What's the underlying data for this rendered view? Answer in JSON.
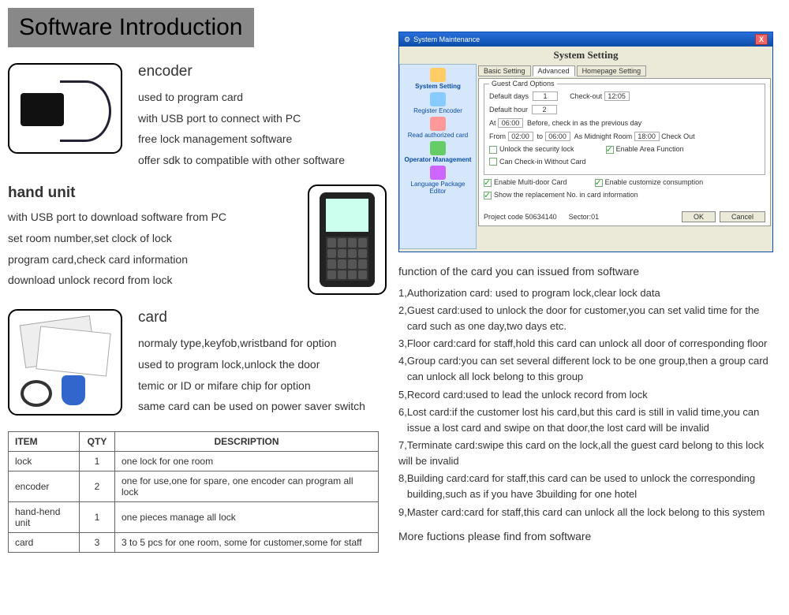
{
  "title": "Software Introduction",
  "encoder": {
    "heading": "encoder",
    "lines": [
      "used to program card",
      "with USB port to connect with PC",
      "free lock management software",
      "offer sdk to compatible with other software"
    ]
  },
  "hand": {
    "heading": "hand unit",
    "lines": [
      "with USB port to download software from PC",
      "set room number,set clock of lock",
      "program card,check card information",
      "download unlock record from lock"
    ]
  },
  "card": {
    "heading": "card",
    "lines": [
      "normaly type,keyfob,wristband for option",
      "used to program lock,unlock the door",
      "temic or ID or mifare chip for option",
      "same card can be used on power saver switch"
    ]
  },
  "table": {
    "headers": [
      "ITEM",
      "QTY",
      "DESCRIPTION"
    ],
    "rows": [
      [
        "lock",
        "1",
        "one lock for one room"
      ],
      [
        "encoder",
        "2",
        "one for use,one for spare, one encoder can program all lock"
      ],
      [
        "hand-hend unit",
        "1",
        "one pieces manage all lock"
      ],
      [
        "card",
        "3",
        "3 to 5 pcs for one room, some for customer,some for staff"
      ]
    ]
  },
  "screenshot": {
    "window_title": "System Maintenance",
    "heading": "System Setting",
    "sidebar": [
      "System Setting",
      "Register Encoder",
      "Read authorized card",
      "Operator Management",
      "Language Package Editor"
    ],
    "tabs": [
      "Basic Setting",
      "Advanced",
      "Homepage Setting"
    ],
    "active_tab": 1,
    "group": "Guest Card Options",
    "default_days_label": "Default days",
    "default_days": "1",
    "checkout_label": "Check-out",
    "checkout": "12:05",
    "default_hour_label": "Default hour",
    "default_hour": "2",
    "at_label": "At",
    "at": "06:00",
    "at_note": "Before, check in as the previous day",
    "from_label": "From",
    "from": "02:00",
    "to_label": "to",
    "to": "06:00",
    "mid_label": "As Midnight Room",
    "mid": "18:00",
    "mid_note": "Check Out",
    "chk_unlock": "Unlock the security lock",
    "chk_area": "Enable Area Function",
    "chk_noCard": "Can Check-in Without Card",
    "chk_multi": "Enable Multi-door Card",
    "chk_custom": "Enable customize consumption",
    "chk_show": "Show the replacement No. in card information",
    "project_label": "Project code",
    "project": "50634140",
    "sector_label": "Sector",
    "sector": "01",
    "ok": "OK",
    "cancel": "Cancel"
  },
  "functions": {
    "heading": "function of the card you can issued from software",
    "items": [
      "1,Authorization card: used to program lock,clear lock data",
      "2,Guest card:used to unlock the door for customer,you can set valid time for the\n   card such as one day,two days etc.",
      "3,Floor card:card for staff,hold this card can unlock all door of corresponding floor",
      "4,Group card:you can set several different lock to be one group,then a group card\n   can unlock all lock belong to this group",
      "5,Record card:used to lead the unlock record from lock",
      "6,Lost card:if the customer lost his card,but this card is still in valid time,you can\n   issue a lost card and swipe on that door,the lost card will be invalid",
      "7,Terminate card:swipe this card on the lock,all the guest card belong to this lock\nwill be invalid",
      "8,Building card:card for staff,this card can be used to unlock the corresponding\n   building,such as if you have 3building for one hotel",
      "9,Master card:card for staff,this card can unlock all the lock belong to this system"
    ],
    "more": "More fuctions please find from software"
  }
}
